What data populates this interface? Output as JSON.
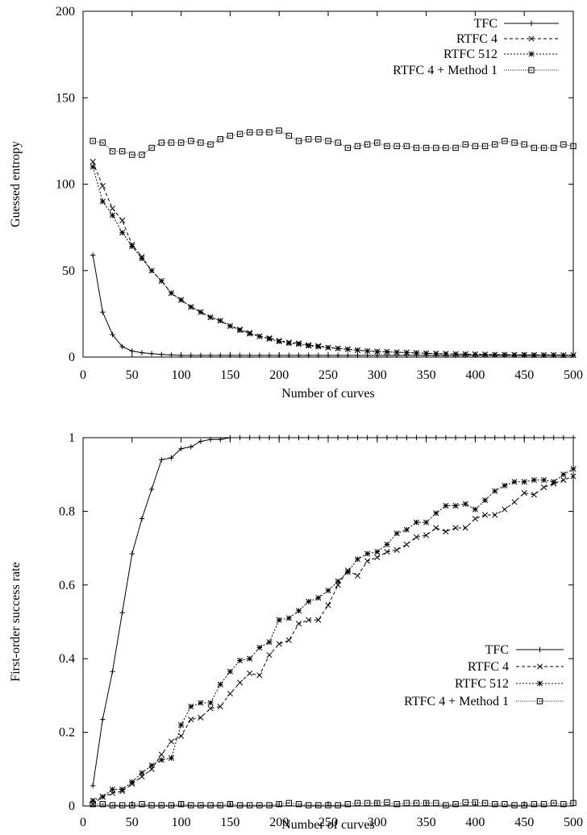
{
  "chart_data": [
    {
      "type": "line",
      "xlabel": "Number of curves",
      "ylabel": "Guessed entropy",
      "xlim": [
        0,
        500
      ],
      "ylim": [
        0,
        200
      ],
      "xticks": [
        "0",
        "50",
        "100",
        "150",
        "200",
        "250",
        "300",
        "350",
        "400",
        "450",
        "500"
      ],
      "yticks": [
        "0",
        "50",
        "100",
        "150",
        "200"
      ],
      "legend_position": "top-right",
      "grid": false,
      "x": [
        10,
        20,
        30,
        40,
        50,
        60,
        70,
        80,
        90,
        100,
        110,
        120,
        130,
        140,
        150,
        160,
        170,
        180,
        190,
        200,
        210,
        220,
        230,
        240,
        250,
        260,
        270,
        280,
        290,
        300,
        310,
        320,
        330,
        340,
        350,
        360,
        370,
        380,
        390,
        400,
        410,
        420,
        430,
        440,
        450,
        460,
        470,
        480,
        490,
        500
      ],
      "series": [
        {
          "name": "TFC",
          "marker": "plus",
          "dash": "solid",
          "values": [
            59,
            26,
            13,
            6,
            3.5,
            2.5,
            2,
            1.5,
            1.2,
            1,
            1,
            1,
            1,
            1,
            1,
            1,
            1,
            1,
            1,
            1,
            1,
            1,
            1,
            1,
            1,
            1,
            1,
            1,
            1,
            1,
            1,
            1,
            1,
            1,
            1,
            1,
            1,
            1,
            1,
            1,
            1,
            1,
            1,
            1,
            1,
            1,
            1,
            1,
            1,
            1
          ]
        },
        {
          "name": "RTFC 4",
          "marker": "cross",
          "dash": "dashed",
          "values": [
            113,
            99,
            86,
            79,
            65,
            58,
            50,
            44,
            37,
            33,
            29,
            26,
            23,
            21,
            18,
            16,
            14,
            12,
            11,
            9.5,
            8.5,
            8,
            7,
            6.5,
            5.5,
            5,
            4.5,
            4,
            3.5,
            3.2,
            3,
            2.8,
            2.6,
            2.4,
            2.2,
            2,
            1.9,
            1.8,
            1.7,
            1.6,
            1.5,
            1.4,
            1.4,
            1.3,
            1.3,
            1.2,
            1.2,
            1.2,
            1.1,
            1.1
          ]
        },
        {
          "name": "RTFC 512",
          "marker": "star",
          "dash": "dotted",
          "values": [
            110,
            90,
            82,
            72,
            64,
            57,
            50,
            44,
            37,
            33,
            29,
            26,
            23,
            21,
            18,
            15.5,
            13.5,
            12,
            10.5,
            9,
            8,
            7.5,
            6.5,
            6,
            5.5,
            5,
            4.5,
            4,
            3.5,
            3.2,
            3,
            2.8,
            2.6,
            2.4,
            2.2,
            2,
            1.9,
            1.8,
            1.7,
            1.6,
            1.5,
            1.4,
            1.4,
            1.3,
            1.3,
            1.2,
            1.2,
            1.2,
            1.1,
            1.1
          ]
        },
        {
          "name": "RTFC 4 + Method 1",
          "marker": "square",
          "dash": "fine-dotted",
          "values": [
            125,
            124,
            119,
            119,
            117,
            117,
            121,
            124,
            124,
            124,
            125,
            124,
            123,
            126,
            128,
            129,
            130,
            130,
            130,
            131,
            128,
            125,
            126,
            126,
            125,
            124,
            121,
            122,
            123,
            124,
            122,
            122,
            122,
            121,
            121,
            121,
            121,
            121,
            123,
            122,
            122,
            123,
            125,
            124,
            123,
            121,
            121,
            121,
            123,
            122
          ]
        }
      ]
    },
    {
      "type": "line",
      "xlabel": "Number of curves",
      "ylabel": "First-order success rate",
      "xlim": [
        0,
        500
      ],
      "ylim": [
        0,
        1
      ],
      "xticks": [
        "0",
        "50",
        "100",
        "150",
        "200",
        "250",
        "300",
        "350",
        "400",
        "450",
        "500"
      ],
      "yticks": [
        "0",
        "0.2",
        "0.4",
        "0.6",
        "0.8",
        "1"
      ],
      "legend_position": "center-right",
      "grid": false,
      "x": [
        10,
        20,
        30,
        40,
        50,
        60,
        70,
        80,
        90,
        100,
        110,
        120,
        130,
        140,
        150,
        160,
        170,
        180,
        190,
        200,
        210,
        220,
        230,
        240,
        250,
        260,
        270,
        280,
        290,
        300,
        310,
        320,
        330,
        340,
        350,
        360,
        370,
        380,
        390,
        400,
        410,
        420,
        430,
        440,
        450,
        460,
        470,
        480,
        490,
        500
      ],
      "series": [
        {
          "name": "TFC",
          "marker": "plus",
          "dash": "solid",
          "values": [
            0.055,
            0.235,
            0.365,
            0.525,
            0.685,
            0.78,
            0.86,
            0.94,
            0.945,
            0.97,
            0.975,
            0.99,
            0.995,
            0.995,
            1,
            1,
            1,
            1,
            1,
            1,
            1,
            1,
            1,
            1,
            1,
            1,
            1,
            1,
            1,
            1,
            1,
            1,
            1,
            1,
            1,
            1,
            1,
            1,
            1,
            1,
            1,
            1,
            1,
            1,
            1,
            1,
            1,
            1,
            1,
            1
          ]
        },
        {
          "name": "RTFC 4",
          "marker": "cross",
          "dash": "dashed",
          "values": [
            0.005,
            0.025,
            0.035,
            0.04,
            0.06,
            0.08,
            0.1,
            0.14,
            0.175,
            0.19,
            0.235,
            0.24,
            0.265,
            0.27,
            0.305,
            0.335,
            0.36,
            0.355,
            0.41,
            0.44,
            0.45,
            0.495,
            0.505,
            0.505,
            0.545,
            0.6,
            0.64,
            0.625,
            0.665,
            0.675,
            0.69,
            0.695,
            0.71,
            0.73,
            0.735,
            0.755,
            0.745,
            0.755,
            0.755,
            0.78,
            0.79,
            0.79,
            0.805,
            0.825,
            0.85,
            0.845,
            0.865,
            0.875,
            0.885,
            0.895
          ]
        },
        {
          "name": "RTFC 512",
          "marker": "star",
          "dash": "dotted",
          "values": [
            0.015,
            0.025,
            0.045,
            0.045,
            0.065,
            0.09,
            0.11,
            0.125,
            0.13,
            0.22,
            0.27,
            0.28,
            0.28,
            0.33,
            0.365,
            0.395,
            0.4,
            0.43,
            0.445,
            0.505,
            0.51,
            0.53,
            0.555,
            0.565,
            0.585,
            0.61,
            0.635,
            0.67,
            0.685,
            0.69,
            0.71,
            0.74,
            0.75,
            0.77,
            0.77,
            0.795,
            0.815,
            0.815,
            0.82,
            0.805,
            0.83,
            0.855,
            0.87,
            0.88,
            0.88,
            0.885,
            0.885,
            0.88,
            0.9,
            0.915
          ]
        },
        {
          "name": "RTFC 4 + Method 1",
          "marker": "square",
          "dash": "fine-dotted",
          "values": [
            0.005,
            0.005,
            0.002,
            0.002,
            0.002,
            0.005,
            0.002,
            0.002,
            0.002,
            0.005,
            0.002,
            0.002,
            0.002,
            0.002,
            0.005,
            0.002,
            0.002,
            0.002,
            0.002,
            0.005,
            0.008,
            0.005,
            0.002,
            0.002,
            0.002,
            0.002,
            0.005,
            0.008,
            0.008,
            0.008,
            0.01,
            0.005,
            0.008,
            0.008,
            0.008,
            0.008,
            0.002,
            0.005,
            0.01,
            0.01,
            0.008,
            0.005,
            0.005,
            0.002,
            0.002,
            0.005,
            0.005,
            0.008,
            0.005,
            0.008
          ]
        }
      ]
    }
  ]
}
